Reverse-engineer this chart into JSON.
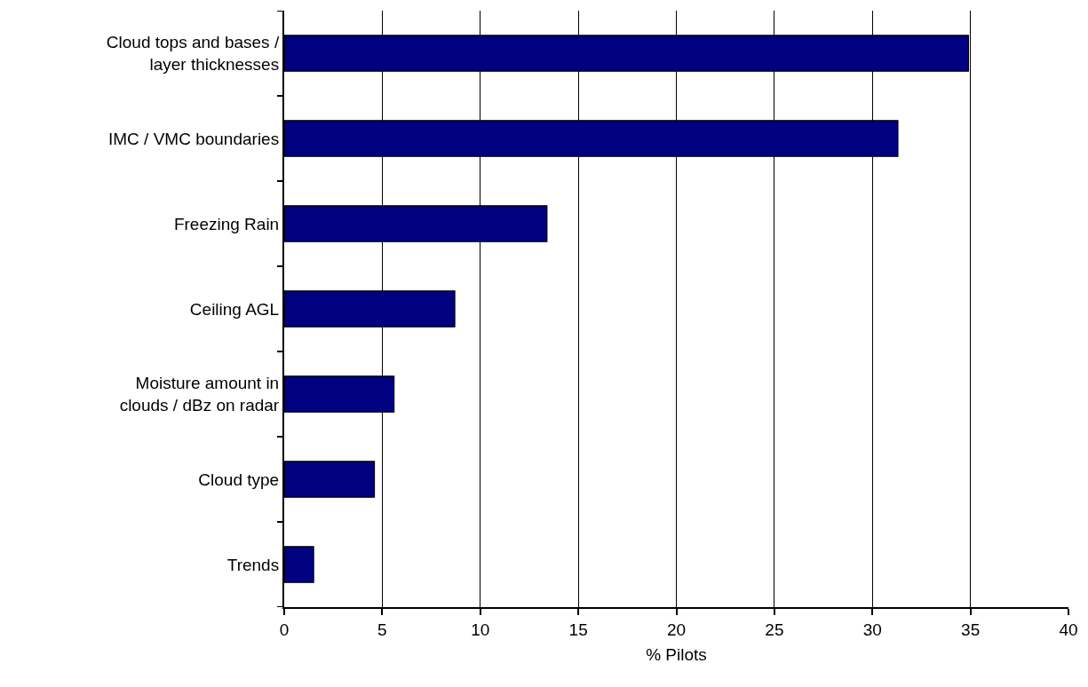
{
  "chart_data": {
    "type": "bar",
    "orientation": "horizontal",
    "xlabel": "% Pilots",
    "categories": [
      "Cloud tops and bases /\nlayer thicknesses",
      "IMC / VMC boundaries",
      "Freezing Rain",
      "Ceiling AGL",
      "Moisture amount in\nclouds / dBz on radar",
      "Cloud type",
      "Trends"
    ],
    "values": [
      34.9,
      31.3,
      13.4,
      8.7,
      5.6,
      4.6,
      1.5
    ],
    "color": "#000080",
    "xlim": [
      0,
      40
    ],
    "xticks": [
      0,
      5,
      10,
      15,
      20,
      25,
      30,
      35,
      40
    ],
    "grid": "x",
    "legend": false
  }
}
